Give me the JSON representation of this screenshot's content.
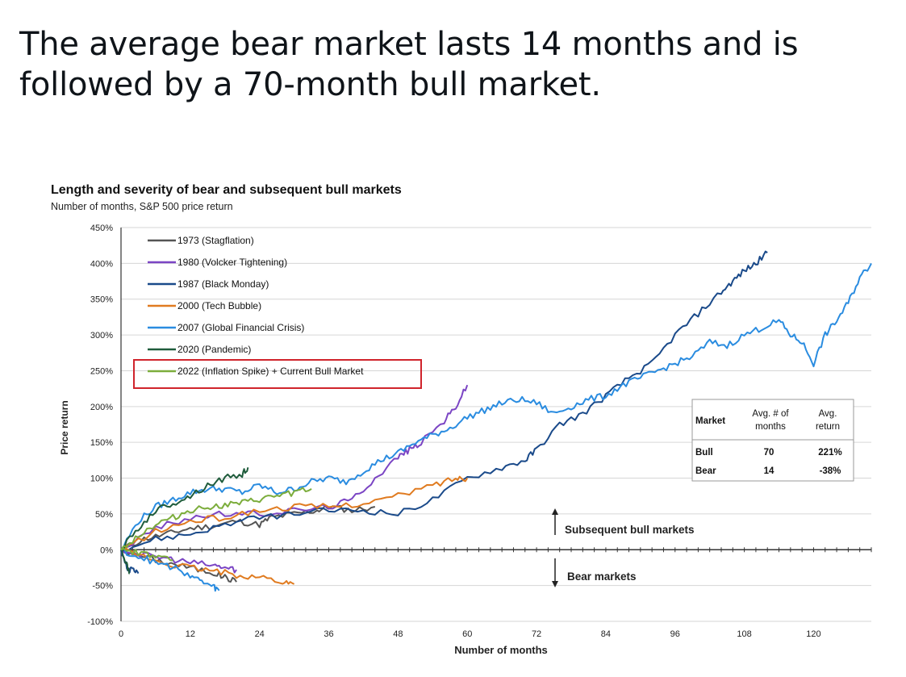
{
  "post": {
    "text": "The average bear market lasts 14 months and is followed by a 70-month bull market."
  },
  "chart_data": {
    "type": "line",
    "title": "Length and severity of bear and subsequent bull markets",
    "subtitle": "Number of months, S&P 500 price return",
    "xlabel": "Number of months",
    "ylabel": "Price return",
    "xlim": [
      0,
      130
    ],
    "ylim": [
      -100,
      450
    ],
    "xticks": [
      0,
      12,
      24,
      36,
      48,
      60,
      72,
      84,
      96,
      108,
      120
    ],
    "yticks": [
      -100,
      -50,
      0,
      50,
      100,
      150,
      200,
      250,
      300,
      350,
      400,
      450
    ],
    "ytick_labels": [
      "-100%",
      "-50%",
      "0%",
      "50%",
      "100%",
      "150%",
      "200%",
      "250%",
      "300%",
      "350%",
      "400%",
      "450%"
    ],
    "grid": true,
    "legend_position": "top-left",
    "highlighted_legend_entry": "2022 (Inflation Spike) + Current Bull Market",
    "series": [
      {
        "name": "1973 (Stagflation)",
        "color": "#555555",
        "bear": [
          [
            0,
            0
          ],
          [
            4,
            -10
          ],
          [
            8,
            -18
          ],
          [
            12,
            -25
          ],
          [
            16,
            -32
          ],
          [
            18,
            -38
          ],
          [
            20,
            -45
          ]
        ],
        "bull": [
          [
            0,
            0
          ],
          [
            4,
            15
          ],
          [
            8,
            22
          ],
          [
            12,
            30
          ],
          [
            16,
            33
          ],
          [
            20,
            40
          ],
          [
            24,
            35
          ],
          [
            26,
            45
          ],
          [
            30,
            50
          ],
          [
            34,
            55
          ],
          [
            36,
            60
          ],
          [
            40,
            55
          ],
          [
            44,
            60
          ]
        ]
      },
      {
        "name": "1980 (Volcker Tightening)",
        "color": "#7b45c4",
        "bear": [
          [
            0,
            0
          ],
          [
            4,
            -8
          ],
          [
            8,
            -12
          ],
          [
            12,
            -18
          ],
          [
            16,
            -22
          ],
          [
            18,
            -25
          ],
          [
            20,
            -28
          ]
        ],
        "bull": [
          [
            0,
            0
          ],
          [
            6,
            30
          ],
          [
            12,
            45
          ],
          [
            18,
            50
          ],
          [
            24,
            50
          ],
          [
            30,
            55
          ],
          [
            36,
            60
          ],
          [
            40,
            70
          ],
          [
            44,
            100
          ],
          [
            48,
            130
          ],
          [
            50,
            140
          ],
          [
            52,
            150
          ],
          [
            56,
            180
          ],
          [
            58,
            200
          ],
          [
            60,
            230
          ]
        ]
      },
      {
        "name": "1987 (Black Monday)",
        "color": "#1a4a8a",
        "bear": [
          [
            0,
            0
          ],
          [
            1,
            -25
          ],
          [
            2,
            -30
          ],
          [
            3,
            -33
          ]
        ],
        "bull": [
          [
            0,
            0
          ],
          [
            6,
            15
          ],
          [
            12,
            22
          ],
          [
            18,
            35
          ],
          [
            24,
            45
          ],
          [
            30,
            50
          ],
          [
            36,
            55
          ],
          [
            42,
            55
          ],
          [
            48,
            50
          ],
          [
            54,
            70
          ],
          [
            60,
            100
          ],
          [
            66,
            115
          ],
          [
            70,
            125
          ],
          [
            72,
            140
          ],
          [
            76,
            175
          ],
          [
            80,
            190
          ],
          [
            84,
            215
          ],
          [
            88,
            240
          ],
          [
            92,
            260
          ],
          [
            96,
            300
          ],
          [
            100,
            330
          ],
          [
            104,
            360
          ],
          [
            106,
            375
          ],
          [
            108,
            390
          ],
          [
            110,
            400
          ],
          [
            112,
            415
          ]
        ]
      },
      {
        "name": "2000 (Tech Bubble)",
        "color": "#e07b20",
        "bear": [
          [
            0,
            0
          ],
          [
            4,
            -10
          ],
          [
            8,
            -20
          ],
          [
            12,
            -25
          ],
          [
            16,
            -30
          ],
          [
            20,
            -35
          ],
          [
            24,
            -38
          ],
          [
            28,
            -45
          ],
          [
            30,
            -48
          ]
        ],
        "bull": [
          [
            0,
            0
          ],
          [
            6,
            25
          ],
          [
            12,
            40
          ],
          [
            18,
            45
          ],
          [
            24,
            55
          ],
          [
            30,
            60
          ],
          [
            36,
            60
          ],
          [
            42,
            65
          ],
          [
            48,
            75
          ],
          [
            54,
            90
          ],
          [
            58,
            100
          ],
          [
            60,
            100
          ]
        ]
      },
      {
        "name": "2007 (Global Financial Crisis)",
        "color": "#2a8ce0",
        "bear": [
          [
            0,
            0
          ],
          [
            3,
            -10
          ],
          [
            6,
            -18
          ],
          [
            9,
            -25
          ],
          [
            12,
            -35
          ],
          [
            14,
            -45
          ],
          [
            16,
            -52
          ],
          [
            17,
            -57
          ]
        ],
        "bull": [
          [
            0,
            0
          ],
          [
            3,
            40
          ],
          [
            6,
            60
          ],
          [
            9,
            70
          ],
          [
            12,
            80
          ],
          [
            15,
            85
          ],
          [
            18,
            85
          ],
          [
            21,
            80
          ],
          [
            24,
            90
          ],
          [
            27,
            80
          ],
          [
            30,
            85
          ],
          [
            33,
            95
          ],
          [
            36,
            100
          ],
          [
            39,
            95
          ],
          [
            42,
            110
          ],
          [
            45,
            125
          ],
          [
            48,
            135
          ],
          [
            51,
            150
          ],
          [
            54,
            160
          ],
          [
            57,
            170
          ],
          [
            60,
            185
          ],
          [
            63,
            195
          ],
          [
            66,
            205
          ],
          [
            69,
            210
          ],
          [
            72,
            205
          ],
          [
            75,
            190
          ],
          [
            78,
            200
          ],
          [
            81,
            210
          ],
          [
            84,
            215
          ],
          [
            87,
            230
          ],
          [
            90,
            240
          ],
          [
            93,
            250
          ],
          [
            96,
            260
          ],
          [
            99,
            270
          ],
          [
            102,
            290
          ],
          [
            105,
            285
          ],
          [
            108,
            300
          ],
          [
            111,
            310
          ],
          [
            114,
            320
          ],
          [
            116,
            300
          ],
          [
            118,
            290
          ],
          [
            120,
            260
          ],
          [
            122,
            300
          ],
          [
            124,
            320
          ],
          [
            126,
            345
          ],
          [
            128,
            380
          ],
          [
            130,
            400
          ]
        ]
      },
      {
        "name": "2020 (Pandemic)",
        "color": "#1f5c3c",
        "bear": [
          [
            0,
            0
          ],
          [
            1,
            -20
          ],
          [
            1.5,
            -33
          ]
        ],
        "bull": [
          [
            0,
            0
          ],
          [
            3,
            30
          ],
          [
            6,
            55
          ],
          [
            9,
            65
          ],
          [
            12,
            75
          ],
          [
            15,
            90
          ],
          [
            18,
            100
          ],
          [
            21,
            105
          ],
          [
            22,
            115
          ]
        ]
      },
      {
        "name": "2022 (Inflation Spike) + Current Bull Market",
        "color": "#7cad3c",
        "bear": [
          [
            0,
            0
          ],
          [
            3,
            -5
          ],
          [
            6,
            -10
          ],
          [
            9,
            -15
          ]
        ],
        "bull": [
          [
            0,
            0
          ],
          [
            3,
            20
          ],
          [
            6,
            35
          ],
          [
            9,
            45
          ],
          [
            12,
            55
          ],
          [
            15,
            60
          ],
          [
            18,
            62
          ],
          [
            21,
            65
          ],
          [
            24,
            70
          ],
          [
            27,
            75
          ],
          [
            30,
            80
          ],
          [
            33,
            85
          ]
        ]
      }
    ],
    "annotations": {
      "bull_label": "Subsequent bull markets",
      "bear_label": "Bear markets"
    },
    "summary_table": {
      "headers": [
        "Market",
        "Avg. # of months",
        "Avg. return"
      ],
      "rows": [
        {
          "market": "Bull",
          "months": "70",
          "return": "221%"
        },
        {
          "market": "Bear",
          "months": "14",
          "return": "-38%"
        }
      ]
    }
  }
}
